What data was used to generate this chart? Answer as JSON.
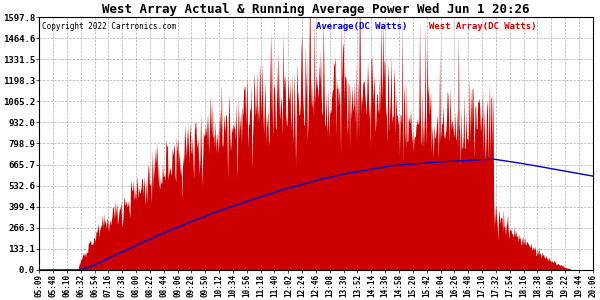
{
  "title": "West Array Actual & Running Average Power Wed Jun 1 20:26",
  "copyright": "Copyright 2022 Cartronics.com",
  "legend_average": "Average(DC Watts)",
  "legend_west": "West Array(DC Watts)",
  "y_tick_values": [
    0.0,
    133.1,
    266.3,
    399.4,
    532.6,
    665.7,
    798.9,
    932.0,
    1065.2,
    1198.3,
    1331.5,
    1464.6,
    1597.8
  ],
  "ymax": 1597.8,
  "ymin": 0.0,
  "background_color": "#ffffff",
  "grid_color": "#b0b0b0",
  "fill_color": "#cc0000",
  "line_color": "#0000cc",
  "title_color": "#000000",
  "copyright_color": "#000000",
  "x_labels": [
    "05:09",
    "05:48",
    "06:10",
    "06:32",
    "06:54",
    "07:16",
    "07:38",
    "08:00",
    "08:22",
    "08:44",
    "09:06",
    "09:28",
    "09:50",
    "10:12",
    "10:34",
    "10:56",
    "11:18",
    "11:40",
    "12:02",
    "12:24",
    "12:46",
    "13:08",
    "13:30",
    "13:52",
    "14:14",
    "14:36",
    "14:58",
    "15:20",
    "15:42",
    "16:04",
    "16:26",
    "16:48",
    "17:10",
    "17:32",
    "17:54",
    "18:16",
    "18:38",
    "19:00",
    "19:22",
    "19:44",
    "20:06"
  ]
}
